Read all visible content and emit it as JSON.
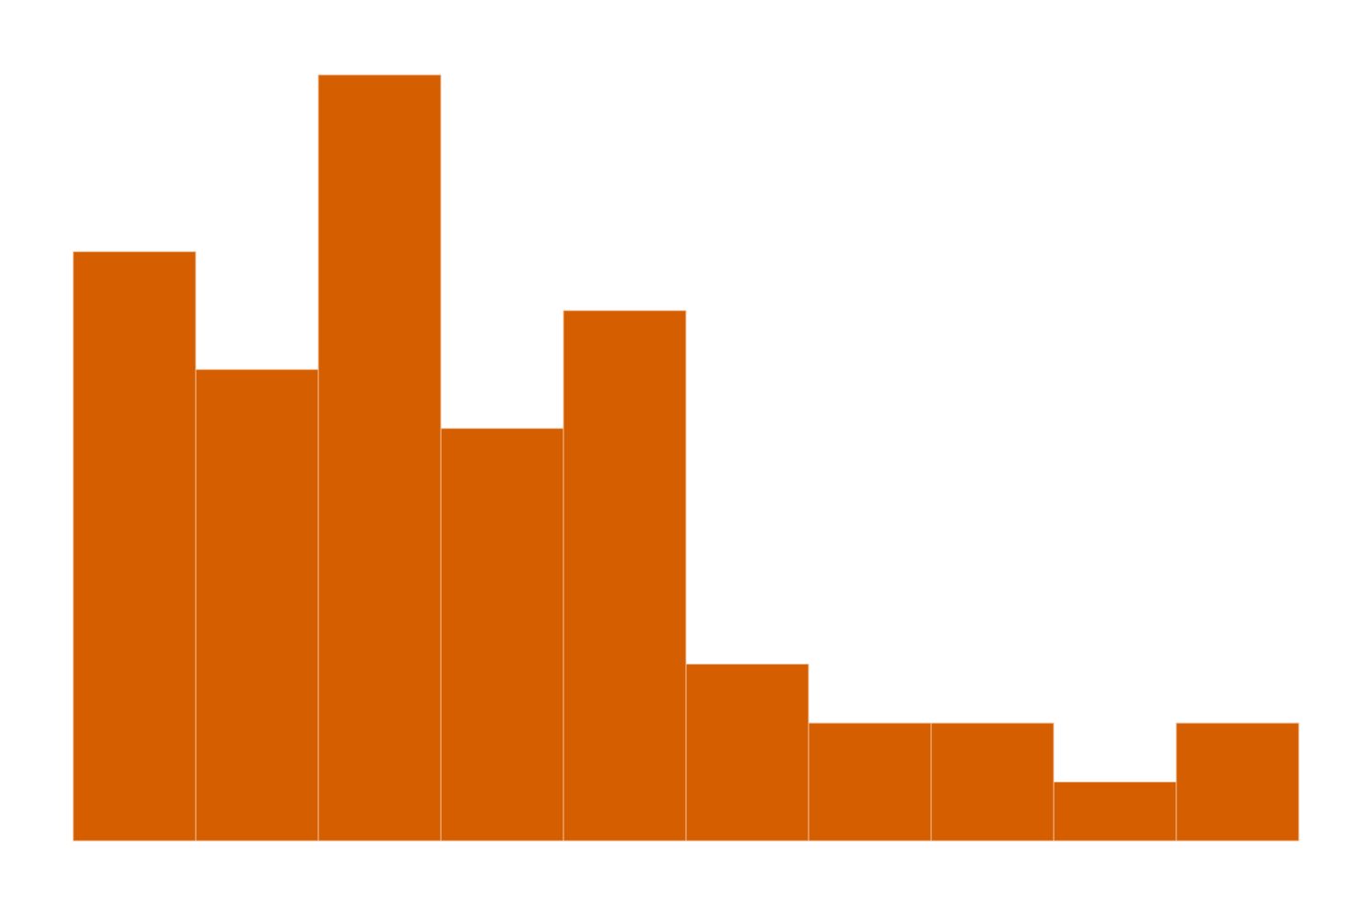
{
  "chart_data": {
    "type": "bar",
    "subtype": "histogram",
    "bins": 10,
    "values": [
      10,
      8,
      13,
      7,
      9,
      3,
      2,
      2,
      1,
      2
    ],
    "ylim": [
      0,
      13.65
    ],
    "grid": false,
    "axes_visible": false,
    "bar_color": "#d55e00",
    "edge_color": "#f2c7a6",
    "background": "#ffffff"
  }
}
